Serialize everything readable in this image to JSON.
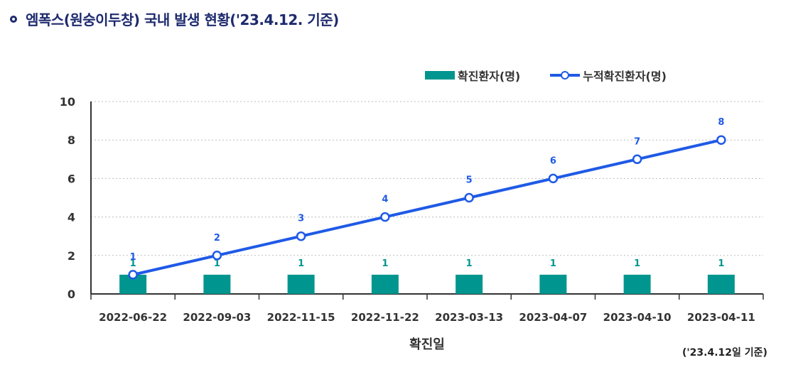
{
  "header": {
    "title": "엠폭스(원숭이두창) 국내 발생 현황('23.4.12. 기준)"
  },
  "footnote": "('23.4.12일 기준)",
  "chart_data": {
    "type": "bar",
    "title": "엠폭스(원숭이두창) 국내 발생 현황('23.4.12. 기준)",
    "xlabel": "확진일",
    "ylabel": "",
    "ylim": [
      0,
      10
    ],
    "yticks": [
      0,
      2,
      4,
      6,
      8,
      10
    ],
    "grid": true,
    "legend_position": "top-right",
    "categories": [
      "2022-06-22",
      "2022-09-03",
      "2022-11-15",
      "2022-11-22",
      "2023-03-13",
      "2023-04-07",
      "2023-04-10",
      "2023-04-11"
    ],
    "series": [
      {
        "name": "확진환자(명)",
        "type": "bar",
        "color": "#00968f",
        "values": [
          1,
          1,
          1,
          1,
          1,
          1,
          1,
          1
        ]
      },
      {
        "name": "누적확진환자(명)",
        "type": "line",
        "color": "#1f5ae6",
        "values": [
          1,
          2,
          3,
          4,
          5,
          6,
          7,
          8
        ]
      }
    ]
  }
}
